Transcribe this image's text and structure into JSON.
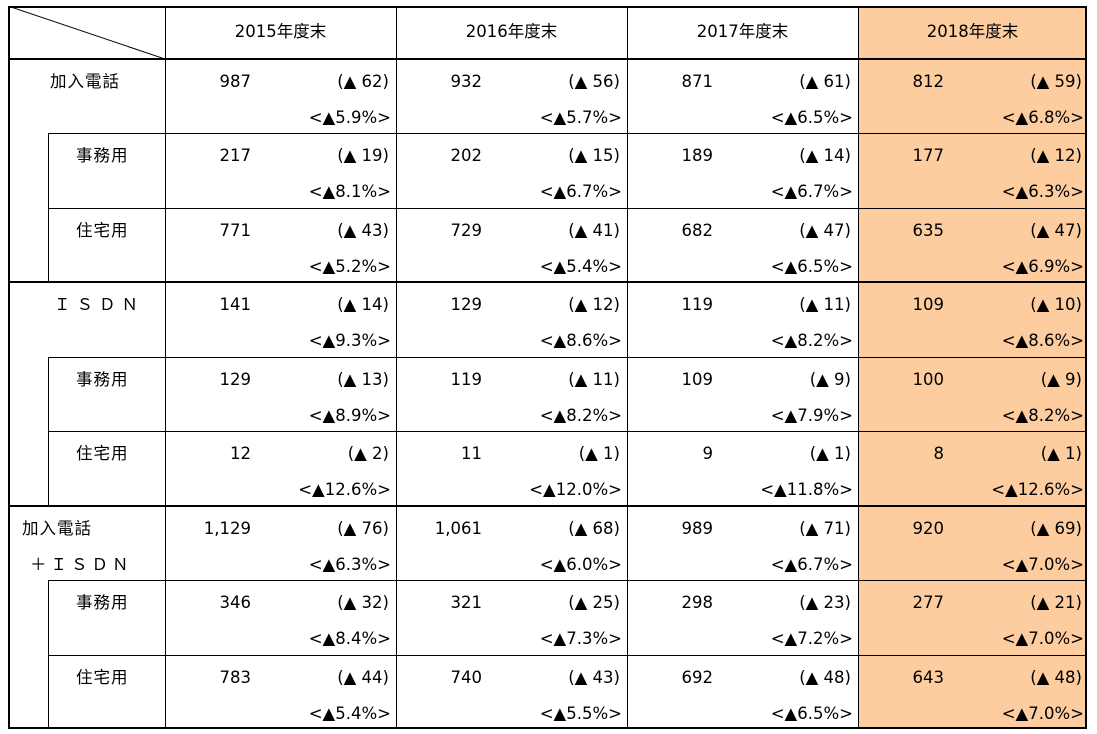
{
  "headers": [
    "2015年度末",
    "2016年度末",
    "2017年度末",
    "2018年度末"
  ],
  "highlight_color": "#fdcc9f",
  "rows": [
    {
      "label": "加入電話",
      "indent": 0,
      "cells": [
        {
          "value": "987",
          "change": "(▲ 62)",
          "pct": "<▲5.9%>"
        },
        {
          "value": "932",
          "change": "(▲ 56)",
          "pct": "<▲5.7%>"
        },
        {
          "value": "871",
          "change": "(▲ 61)",
          "pct": "<▲6.5%>"
        },
        {
          "value": "812",
          "change": "(▲ 59)",
          "pct": "<▲6.8%>"
        }
      ]
    },
    {
      "label": "事務用",
      "indent": 1,
      "cells": [
        {
          "value": "217",
          "change": "(▲ 19)",
          "pct": "<▲8.1%>"
        },
        {
          "value": "202",
          "change": "(▲ 15)",
          "pct": "<▲6.7%>"
        },
        {
          "value": "189",
          "change": "(▲ 14)",
          "pct": "<▲6.7%>"
        },
        {
          "value": "177",
          "change": "(▲ 12)",
          "pct": "<▲6.3%>"
        }
      ]
    },
    {
      "label": "住宅用",
      "indent": 1,
      "cells": [
        {
          "value": "771",
          "change": "(▲ 43)",
          "pct": "<▲5.2%>"
        },
        {
          "value": "729",
          "change": "(▲ 41)",
          "pct": "<▲5.4%>"
        },
        {
          "value": "682",
          "change": "(▲ 47)",
          "pct": "<▲6.5%>"
        },
        {
          "value": "635",
          "change": "(▲ 47)",
          "pct": "<▲6.9%>"
        }
      ]
    },
    {
      "label": "ＩＳＤＮ",
      "indent": 0,
      "cells": [
        {
          "value": "141",
          "change": "(▲ 14)",
          "pct": "<▲9.3%>"
        },
        {
          "value": "129",
          "change": "(▲ 12)",
          "pct": "<▲8.6%>"
        },
        {
          "value": "119",
          "change": "(▲ 11)",
          "pct": "<▲8.2%>"
        },
        {
          "value": "109",
          "change": "(▲ 10)",
          "pct": "<▲8.6%>"
        }
      ]
    },
    {
      "label": "事務用",
      "indent": 1,
      "cells": [
        {
          "value": "129",
          "change": "(▲ 13)",
          "pct": "<▲8.9%>"
        },
        {
          "value": "119",
          "change": "(▲ 11)",
          "pct": "<▲8.2%>"
        },
        {
          "value": "109",
          "change": "(▲ 9)",
          "pct": "<▲7.9%>"
        },
        {
          "value": "100",
          "change": "(▲ 9)",
          "pct": "<▲8.2%>"
        }
      ]
    },
    {
      "label": "住宅用",
      "indent": 1,
      "cells": [
        {
          "value": "12",
          "change": "(▲ 2)",
          "pct": "<▲12.6%>"
        },
        {
          "value": "11",
          "change": "(▲ 1)",
          "pct": "<▲12.0%>"
        },
        {
          "value": "9",
          "change": "(▲ 1)",
          "pct": "<▲11.8%>"
        },
        {
          "value": "8",
          "change": "(▲ 1)",
          "pct": "<▲12.6%>"
        }
      ]
    },
    {
      "label": "加入電話",
      "label2": "＋ＩＳＤＮ",
      "indent": 0,
      "cells": [
        {
          "value": "1,129",
          "change": "(▲ 76)",
          "pct": "<▲6.3%>"
        },
        {
          "value": "1,061",
          "change": "(▲ 68)",
          "pct": "<▲6.0%>"
        },
        {
          "value": "989",
          "change": "(▲ 71)",
          "pct": "<▲6.7%>"
        },
        {
          "value": "920",
          "change": "(▲ 69)",
          "pct": "<▲7.0%>"
        }
      ]
    },
    {
      "label": "事務用",
      "indent": 1,
      "cells": [
        {
          "value": "346",
          "change": "(▲ 32)",
          "pct": "<▲8.4%>"
        },
        {
          "value": "321",
          "change": "(▲ 25)",
          "pct": "<▲7.3%>"
        },
        {
          "value": "298",
          "change": "(▲ 23)",
          "pct": "<▲7.2%>"
        },
        {
          "value": "277",
          "change": "(▲ 21)",
          "pct": "<▲7.0%>"
        }
      ]
    },
    {
      "label": "住宅用",
      "indent": 1,
      "cells": [
        {
          "value": "783",
          "change": "(▲ 44)",
          "pct": "<▲5.4%>"
        },
        {
          "value": "740",
          "change": "(▲ 43)",
          "pct": "<▲5.5%>"
        },
        {
          "value": "692",
          "change": "(▲ 48)",
          "pct": "<▲6.5%>"
        },
        {
          "value": "643",
          "change": "(▲ 48)",
          "pct": "<▲7.0%>"
        }
      ]
    }
  ]
}
